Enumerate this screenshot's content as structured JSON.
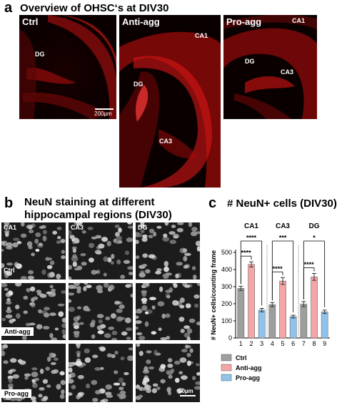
{
  "panel_a": {
    "letter": "a",
    "title": "Overview of OHSC‘s at DIV30",
    "images": [
      {
        "name": "Ctrl",
        "regions": [
          "DG"
        ],
        "scalebar": "200µm"
      },
      {
        "name": "Anti-agg",
        "regions": [
          "CA1",
          "DG",
          "CA3"
        ]
      },
      {
        "name": "Pro-agg",
        "regions": [
          "CA1",
          "DG",
          "CA3"
        ]
      }
    ]
  },
  "panel_b": {
    "letter": "b",
    "title_line1": "NeuN staining at different",
    "title_line2": "hippocampal regions (DIV30)",
    "columns": [
      "CA1",
      "CA3",
      "DG"
    ],
    "rows": [
      "Ctrl",
      "Anti-agg",
      "Pro-agg"
    ],
    "scalebar": "50µm"
  },
  "panel_c": {
    "letter": "c",
    "title": "# NeuN+ cells (DIV30)"
  },
  "chart_data": {
    "type": "bar",
    "title": "# NeuN+ cells (DIV30)",
    "ylabel": "# NeuN+ cells/counting frame",
    "ylim": [
      0,
      500
    ],
    "yticks": [
      0,
      100,
      200,
      300,
      400,
      500
    ],
    "groups": [
      "CA1",
      "CA3",
      "DG"
    ],
    "x": [
      "1",
      "2",
      "3",
      "4",
      "5",
      "6",
      "7",
      "8",
      "9"
    ],
    "series": [
      {
        "name": "Ctrl",
        "color": "#9e9e9e",
        "values": [
          290,
          195,
          198
        ],
        "errors": [
          12,
          12,
          15
        ],
        "positions": [
          "1",
          "4",
          "7"
        ]
      },
      {
        "name": "Anti-agg",
        "color": "#f4a6a6",
        "values": [
          430,
          333,
          357
        ],
        "errors": [
          15,
          20,
          20
        ],
        "positions": [
          "2",
          "5",
          "8"
        ]
      },
      {
        "name": "Pro-agg",
        "color": "#8fc3ec",
        "values": [
          163,
          125,
          153
        ],
        "errors": [
          10,
          8,
          10
        ],
        "positions": [
          "3",
          "6",
          "9"
        ]
      }
    ],
    "significance": [
      {
        "group": "CA1",
        "pairs": [
          [
            "1",
            "2",
            "****"
          ],
          [
            "1",
            "3",
            "****"
          ]
        ]
      },
      {
        "group": "CA3",
        "pairs": [
          [
            "4",
            "5",
            "****"
          ],
          [
            "4",
            "6",
            "***"
          ]
        ]
      },
      {
        "group": "DG",
        "pairs": [
          [
            "7",
            "8",
            "****"
          ],
          [
            "7",
            "9",
            "*"
          ]
        ]
      }
    ],
    "legend": [
      "Ctrl",
      "Anti-agg",
      "Pro-agg"
    ],
    "legend_position": "bottom-left"
  }
}
